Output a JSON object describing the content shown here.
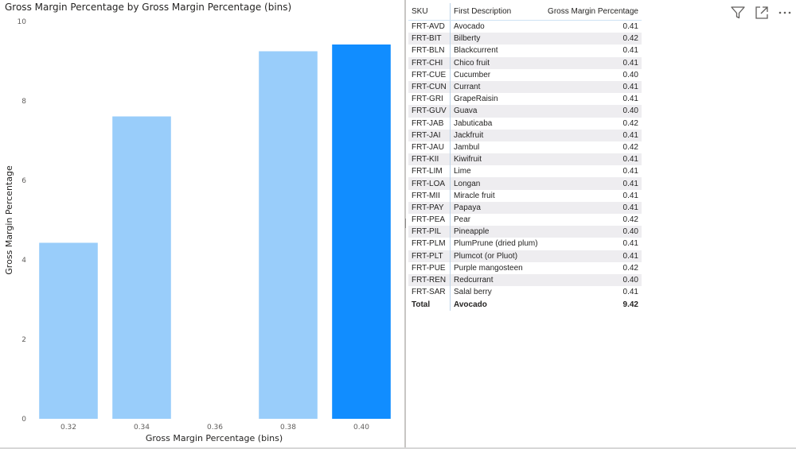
{
  "colors": {
    "bar": "#99cdfa",
    "bar_selected": "#118dff",
    "tick_text": "#605e5c",
    "table_stripe": "#eeedf0"
  },
  "chart_data": {
    "type": "bar",
    "title": "Gross Margin Percentage by Gross Margin Percentage (bins)",
    "xlabel": "Gross Margin Percentage (bins)",
    "ylabel": "Gross Margin Percentage",
    "x_ticks": [
      "0.32",
      "0.34",
      "0.36",
      "0.38",
      "0.40"
    ],
    "categories": [
      0.32,
      0.34,
      0.38,
      0.4
    ],
    "values": [
      4.43,
      7.61,
      9.25,
      9.42
    ],
    "highlighted": [
      false,
      false,
      false,
      true
    ],
    "xlim": [
      0.31,
      0.41
    ],
    "ylim": [
      0,
      10
    ],
    "y_ticks": [
      0,
      2,
      4,
      6,
      8,
      10
    ],
    "grid": false,
    "legend": "none"
  },
  "table": {
    "headers": {
      "sku": "SKU",
      "description": "First Description",
      "gm": "Gross Margin Percentage"
    },
    "rows": [
      {
        "sku": "FRT-AVD",
        "description": "Avocado",
        "gm": "0.41"
      },
      {
        "sku": "FRT-BIT",
        "description": "Bilberty",
        "gm": "0.42"
      },
      {
        "sku": "FRT-BLN",
        "description": "Blackcurrent",
        "gm": "0.41"
      },
      {
        "sku": "FRT-CHI",
        "description": "Chico fruit",
        "gm": "0.41"
      },
      {
        "sku": "FRT-CUE",
        "description": "Cucumber",
        "gm": "0.40"
      },
      {
        "sku": "FRT-CUN",
        "description": "Currant",
        "gm": "0.41"
      },
      {
        "sku": "FRT-GRI",
        "description": "GrapeRaisin",
        "gm": "0.41"
      },
      {
        "sku": "FRT-GUV",
        "description": "Guava",
        "gm": "0.40"
      },
      {
        "sku": "FRT-JAB",
        "description": "Jabuticaba",
        "gm": "0.42"
      },
      {
        "sku": "FRT-JAI",
        "description": "Jackfruit",
        "gm": "0.41"
      },
      {
        "sku": "FRT-JAU",
        "description": "Jambul",
        "gm": "0.42"
      },
      {
        "sku": "FRT-KII",
        "description": "Kiwifruit",
        "gm": "0.41"
      },
      {
        "sku": "FRT-LIM",
        "description": "Lime",
        "gm": "0.41"
      },
      {
        "sku": "FRT-LOA",
        "description": "Longan",
        "gm": "0.41"
      },
      {
        "sku": "FRT-MII",
        "description": "Miracle fruit",
        "gm": "0.41"
      },
      {
        "sku": "FRT-PAY",
        "description": "Papaya",
        "gm": "0.41"
      },
      {
        "sku": "FRT-PEA",
        "description": "Pear",
        "gm": "0.42"
      },
      {
        "sku": "FRT-PIL",
        "description": "Pineapple",
        "gm": "0.40"
      },
      {
        "sku": "FRT-PLM",
        "description": "PlumPrune (dried plum)",
        "gm": "0.41"
      },
      {
        "sku": "FRT-PLT",
        "description": "Plumcot (or Pluot)",
        "gm": "0.41"
      },
      {
        "sku": "FRT-PUE",
        "description": "Purple mangosteen",
        "gm": "0.42"
      },
      {
        "sku": "FRT-REN",
        "description": "Redcurrant",
        "gm": "0.40"
      },
      {
        "sku": "FRT-SAR",
        "description": "Salal berry",
        "gm": "0.41"
      }
    ],
    "total": {
      "sku": "Total",
      "description": "Avocado",
      "gm": "9.42"
    }
  },
  "icons": {
    "filter": "filter-icon",
    "focus": "focus-mode-icon"
  }
}
